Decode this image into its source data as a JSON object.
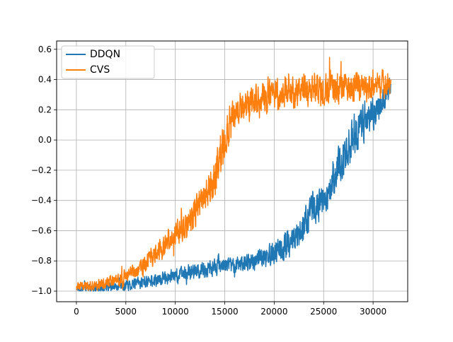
{
  "chart_data": {
    "type": "line",
    "title": "",
    "xlabel": "",
    "ylabel": "",
    "xlim": [
      -2000,
      33500
    ],
    "ylim": [
      -1.07,
      0.655
    ],
    "grid": true,
    "legend_position": "top-left",
    "x_ticks": [
      0,
      5000,
      10000,
      15000,
      20000,
      25000,
      30000
    ],
    "x_tick_labels": [
      "0",
      "5000",
      "10000",
      "15000",
      "20000",
      "25000",
      "30000"
    ],
    "y_ticks": [
      -1.0,
      -0.8,
      -0.6,
      -0.4,
      -0.2,
      0.0,
      0.2,
      0.4,
      0.6
    ],
    "y_tick_labels": [
      "−1.0",
      "−0.8",
      "−0.6",
      "−0.4",
      "−0.2",
      "0.0",
      "0.2",
      "0.4",
      "0.6"
    ],
    "series": [
      {
        "name": "DDQN",
        "color": "#1f77b4",
        "anchor_x": [
          0,
          2000,
          4000,
          6000,
          8000,
          10000,
          12000,
          14000,
          16000,
          18000,
          20000,
          22000,
          23000,
          24000,
          25000,
          26000,
          27000,
          28000,
          29000,
          30000,
          31000,
          31800
        ],
        "anchor_y": [
          -0.98,
          -0.98,
          -0.97,
          -0.95,
          -0.93,
          -0.9,
          -0.87,
          -0.84,
          -0.82,
          -0.8,
          -0.75,
          -0.66,
          -0.55,
          -0.45,
          -0.4,
          -0.25,
          -0.12,
          0.02,
          0.12,
          0.18,
          0.25,
          0.35
        ],
        "noise": [
          0.025,
          0.025,
          0.03,
          0.035,
          0.04,
          0.045,
          0.05,
          0.05,
          0.05,
          0.06,
          0.07,
          0.09,
          0.1,
          0.1,
          0.1,
          0.12,
          0.13,
          0.13,
          0.12,
          0.1,
          0.08,
          0.06
        ]
      },
      {
        "name": "CVS",
        "color": "#ff7f0e",
        "anchor_x": [
          0,
          2000,
          4000,
          5500,
          7000,
          8500,
          10000,
          11500,
          12500,
          13500,
          14500,
          15500,
          16500,
          18000,
          20000,
          22000,
          24000,
          26000,
          28000,
          30000,
          31800
        ],
        "anchor_y": [
          -0.97,
          -0.96,
          -0.93,
          -0.88,
          -0.82,
          -0.72,
          -0.62,
          -0.52,
          -0.42,
          -0.35,
          -0.1,
          0.1,
          0.2,
          0.25,
          0.3,
          0.3,
          0.33,
          0.35,
          0.35,
          0.36,
          0.38
        ],
        "noise": [
          0.025,
          0.03,
          0.04,
          0.05,
          0.06,
          0.07,
          0.08,
          0.09,
          0.1,
          0.12,
          0.14,
          0.12,
          0.1,
          0.1,
          0.11,
          0.1,
          0.1,
          0.1,
          0.09,
          0.08,
          0.08
        ]
      }
    ]
  }
}
